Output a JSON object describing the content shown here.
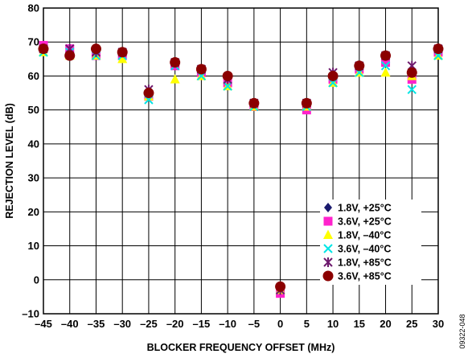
{
  "chart_data": {
    "type": "scatter",
    "xlabel": "BLOCKER FREQUENCY OFFSET (MHz)",
    "ylabel": "REJECTION LEVEL (dB)",
    "xlim": [
      -45,
      30
    ],
    "ylim": [
      -10,
      80
    ],
    "x_ticks": [
      -45,
      -40,
      -35,
      -30,
      -25,
      -20,
      -15,
      -10,
      -5,
      0,
      5,
      10,
      15,
      20,
      25,
      30
    ],
    "x_tick_labels": [
      "–45",
      "–40",
      "–35",
      "–30",
      "–25",
      "–20",
      "–15",
      "–10",
      "–5",
      "0",
      "5",
      "10",
      "15",
      "20",
      "25",
      "30"
    ],
    "y_ticks": [
      -10,
      0,
      10,
      20,
      30,
      40,
      50,
      60,
      70,
      80
    ],
    "y_tick_labels": [
      "–10",
      "0",
      "10",
      "20",
      "30",
      "40",
      "50",
      "60",
      "70",
      "80"
    ],
    "grid": true,
    "legend_position": "bottom-right",
    "figure_id": "09322-048",
    "x": [
      -45,
      -40,
      -35,
      -30,
      -25,
      -20,
      -15,
      -10,
      -5,
      0,
      5,
      10,
      15,
      20,
      25,
      30
    ],
    "series": [
      {
        "name": "1.8V, +25°C",
        "marker": "diamond",
        "color": "#1a1a6e",
        "values": [
          68,
          67,
          67,
          66,
          55,
          64,
          61,
          59,
          51,
          -3,
          51,
          60,
          62,
          64,
          60,
          67
        ]
      },
      {
        "name": "3.6V, +25°C",
        "marker": "square",
        "color": "#ff22cc",
        "values": [
          69,
          68,
          66,
          66,
          54,
          63,
          61,
          58,
          51,
          -4,
          50,
          59,
          62,
          64,
          59,
          67
        ]
      },
      {
        "name": "1.8V, –40°C",
        "marker": "triangle",
        "color": "#ffff00",
        "values": [
          67,
          66,
          66,
          65,
          54,
          59,
          60,
          57,
          51,
          -3,
          51,
          58,
          61,
          61,
          60,
          66
        ]
      },
      {
        "name": "3.6V, –40°C",
        "marker": "x",
        "color": "#00e5e5",
        "values": [
          67,
          67,
          66,
          66,
          53,
          63,
          60,
          57,
          51,
          -3,
          51,
          58,
          61,
          63,
          56,
          66
        ]
      },
      {
        "name": "1.8V, +85°C",
        "marker": "asterisk",
        "color": "#6e1a6e",
        "values": [
          68,
          68,
          67,
          67,
          56,
          64,
          62,
          59,
          52,
          -3,
          52,
          61,
          63,
          66,
          63,
          68
        ]
      },
      {
        "name": "3.6V, +85°C",
        "marker": "circle",
        "color": "#8b0000",
        "values": [
          68,
          66,
          68,
          67,
          55,
          64,
          62,
          60,
          52,
          -2,
          52,
          60,
          63,
          66,
          61,
          68
        ]
      }
    ]
  }
}
